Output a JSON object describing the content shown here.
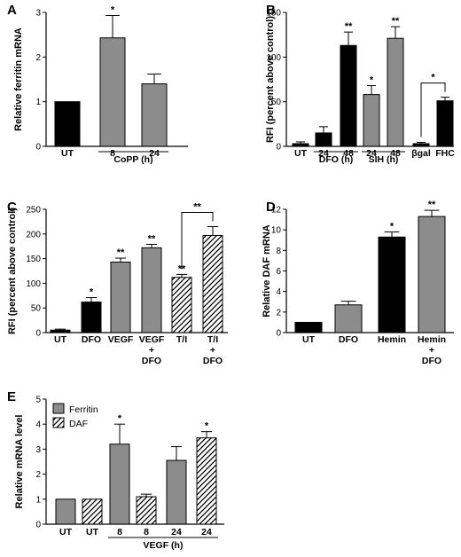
{
  "colors": {
    "black": "#000000",
    "gray": "#8c8c8c",
    "hatch": "diagonal-hatch"
  },
  "chart_data": [
    {
      "id": "A",
      "panel_letter": "A",
      "type": "bar",
      "ylabel": "Relative ferritin mRNA",
      "ylim": [
        0,
        3
      ],
      "yticks": [
        "0",
        "1",
        "2",
        "3"
      ],
      "categories": [
        "UT",
        "8",
        "24"
      ],
      "values": [
        1.0,
        2.43,
        1.4
      ],
      "errors": [
        0,
        0.5,
        0.22
      ],
      "fills": [
        "black",
        "gray",
        "gray"
      ],
      "stars": [
        "",
        "*",
        ""
      ],
      "groups": [
        {
          "label": "CoPP (h)",
          "from": 1,
          "to": 2
        }
      ]
    },
    {
      "id": "B",
      "panel_letter": "B",
      "type": "bar",
      "ylabel": "RFI (percent above control)",
      "ylim": [
        0,
        150
      ],
      "yticks": [
        "0",
        "50",
        "100",
        "150"
      ],
      "categories": [
        "UT",
        "24",
        "48",
        "24",
        "48",
        "βgal",
        "FHC"
      ],
      "values": [
        3,
        15,
        113,
        58,
        121,
        3,
        51
      ],
      "errors": [
        2,
        7,
        15,
        10,
        13,
        1.5,
        4
      ],
      "fills": [
        "black",
        "black",
        "black",
        "gray",
        "gray",
        "black",
        "black"
      ],
      "stars": [
        "",
        "",
        "**",
        "*",
        "**",
        "",
        ""
      ],
      "groups": [
        {
          "label": "DFO (h)",
          "from": 1,
          "to": 2
        },
        {
          "label": "SIH (h)",
          "from": 3,
          "to": 4
        }
      ],
      "brackets": [
        {
          "from": 5,
          "to": 6,
          "label": "*"
        }
      ]
    },
    {
      "id": "C",
      "panel_letter": "C",
      "type": "bar",
      "ylabel": "RFI (percent above control)",
      "ylim": [
        0,
        250
      ],
      "yticks": [
        "0",
        "50",
        "100",
        "150",
        "200",
        "250"
      ],
      "categories": [
        [
          "UT"
        ],
        [
          "DFO"
        ],
        [
          "VEGF"
        ],
        [
          "VEGF",
          "+",
          "DFO"
        ],
        [
          "T/I"
        ],
        [
          "T/I",
          "+",
          "DFO"
        ]
      ],
      "values": [
        5,
        62,
        143,
        172,
        112,
        197
      ],
      "errors": [
        2,
        9,
        8,
        7,
        6,
        18
      ],
      "fills": [
        "black",
        "black",
        "gray",
        "gray",
        "hatch",
        "hatch"
      ],
      "stars": [
        "",
        "*",
        "**",
        "**",
        "**",
        ""
      ],
      "brackets": [
        {
          "from": 4,
          "to": 5,
          "label": "**"
        }
      ]
    },
    {
      "id": "D",
      "panel_letter": "D",
      "type": "bar",
      "ylabel": "Relative DAF mRNA",
      "ylim": [
        0,
        12
      ],
      "yticks": [
        "0",
        "2",
        "4",
        "6",
        "8",
        "10",
        "12"
      ],
      "categories": [
        [
          "UT"
        ],
        [
          "DFO"
        ],
        [
          "Hemin"
        ],
        [
          "Hemin",
          "+",
          "DFO"
        ]
      ],
      "values": [
        1.0,
        2.7,
        9.3,
        11.3
      ],
      "errors": [
        0,
        0.35,
        0.5,
        0.6
      ],
      "fills": [
        "black",
        "gray",
        "black",
        "gray"
      ],
      "stars": [
        "",
        "",
        "*",
        "**"
      ]
    },
    {
      "id": "E",
      "panel_letter": "E",
      "type": "bar",
      "ylabel": "Relative mRNA level",
      "ylim": [
        0,
        5
      ],
      "yticks": [
        "0",
        "1",
        "2",
        "3",
        "4",
        "5"
      ],
      "categories": [
        "UT",
        "UT",
        "8",
        "8",
        "24",
        "24"
      ],
      "values": [
        1.0,
        1.0,
        3.2,
        1.1,
        2.55,
        3.45
      ],
      "errors": [
        0,
        0,
        0.8,
        0.1,
        0.55,
        0.25
      ],
      "fills": [
        "gray",
        "hatch",
        "gray",
        "hatch",
        "gray",
        "hatch"
      ],
      "stars": [
        "",
        "",
        "*",
        "",
        "",
        "*"
      ],
      "groups": [
        {
          "label": "VEGF (h)",
          "from": 2,
          "to": 5
        }
      ],
      "legend": [
        {
          "name": "Ferritin",
          "fill": "gray"
        },
        {
          "name": "DAF",
          "fill": "hatch"
        }
      ]
    }
  ]
}
